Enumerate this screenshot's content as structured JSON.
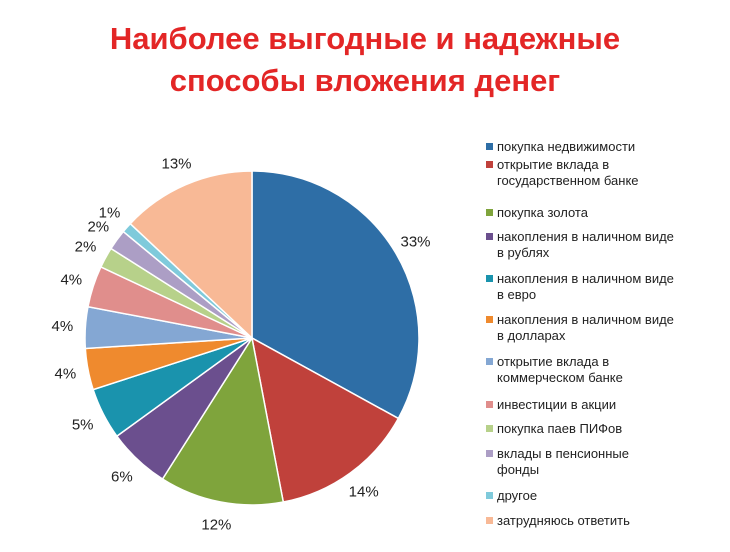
{
  "title": {
    "line1": "Наиболее выгодные и надежные",
    "line2": "способы вложения денег"
  },
  "chart_data": {
    "type": "pie",
    "title": "Наиболее выгодные и надежные способы вложения денег",
    "legend_position": "right",
    "slices": [
      {
        "label": [
          "покупка недвижимости"
        ],
        "value": 33,
        "value_label": "33%",
        "color": "#2e6ea6"
      },
      {
        "label": [
          "открытие вклада в",
          "государственном банке"
        ],
        "value": 14,
        "value_label": "14%",
        "color": "#c0413b"
      },
      {
        "label": [
          "покупка золота"
        ],
        "value": 12,
        "value_label": "12%",
        "color": "#7fa43c"
      },
      {
        "label": [
          "накопления в наличном виде",
          "в рублях"
        ],
        "value": 6,
        "value_label": "6%",
        "color": "#6b4f8e"
      },
      {
        "label": [
          "накопления в наличном виде",
          "в евро"
        ],
        "value": 5,
        "value_label": "5%",
        "color": "#1a93ad"
      },
      {
        "label": [
          "накопления в наличном виде",
          "в долларах"
        ],
        "value": 4,
        "value_label": "4%",
        "color": "#ef8a2e"
      },
      {
        "label": [
          "открытие вклада в",
          "коммерческом банке"
        ],
        "value": 4,
        "value_label": "4%",
        "color": "#84a7d3"
      },
      {
        "label": [
          "инвестиции в акции"
        ],
        "value": 4,
        "value_label": "4%",
        "color": "#e08e8c"
      },
      {
        "label": [
          "покупка паев ПИФов"
        ],
        "value": 2,
        "value_label": "2%",
        "color": "#b7d18a"
      },
      {
        "label": [
          "вклады в пенсионные",
          "фонды"
        ],
        "value": 2,
        "value_label": "2%",
        "color": "#ac9ec5"
      },
      {
        "label": [
          "другое"
        ],
        "value": 1,
        "value_label": "1%",
        "color": "#7fcadb"
      },
      {
        "label": [
          "затрудняюсь ответить"
        ],
        "value": 13,
        "value_label": "13%",
        "color": "#f8b996"
      }
    ]
  }
}
